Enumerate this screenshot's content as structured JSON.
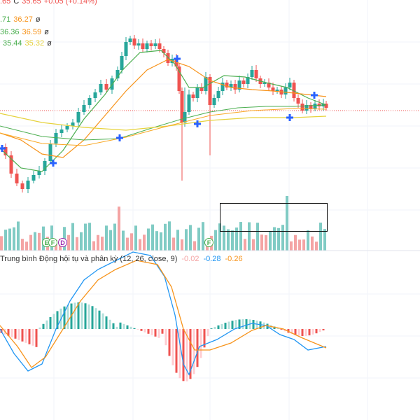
{
  "legend": {
    "ohlc_tail": ".65",
    "close_label": "C",
    "close_value": "35.65",
    "change": "+0.05 (+0.14%)",
    "ma_rows": [
      {
        "a": ".71",
        "b": "36.27",
        "empty": "ø"
      },
      {
        "a": "36.36",
        "b": "36.59",
        "empty": "ø"
      },
      {
        "a": "35.44",
        "b": "35.32",
        "empty": "ø"
      }
    ]
  },
  "macd": {
    "title": "Trung bình Động hội tụ và phân kỳ (12, 26, close, 9)",
    "hist": "-0.02",
    "macd": "-0.28",
    "signal": "-0.26"
  },
  "events": [
    {
      "label": "E",
      "kind": "f"
    },
    {
      "label": "F",
      "kind": "f"
    },
    {
      "label": "D",
      "kind": "d"
    },
    {
      "label": "F",
      "kind": "f"
    }
  ],
  "colors": {
    "up": "#26a69a",
    "down": "#ef5350",
    "ma_short": "#4caf50",
    "ma_mid": "#f7931a",
    "ma_long": "#e6d23c",
    "macd_line": "#2196f3",
    "signal_line": "#f7931a",
    "cross_marker": "#2962ff"
  }
}
